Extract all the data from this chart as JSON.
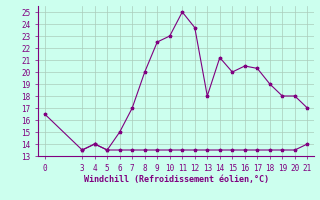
{
  "x": [
    0,
    3,
    4,
    5,
    6,
    7,
    8,
    9,
    10,
    11,
    12,
    13,
    14,
    15,
    16,
    17,
    18,
    19,
    20,
    21
  ],
  "y": [
    16.5,
    13.5,
    14.0,
    13.5,
    15.0,
    17.0,
    20.0,
    22.5,
    23.0,
    25.0,
    23.7,
    18.0,
    21.2,
    20.0,
    20.5,
    20.3,
    19.0,
    18.0,
    18.0,
    17.0
  ],
  "y2_x": [
    3,
    4,
    5,
    6,
    7,
    8,
    9,
    10,
    11,
    12,
    13,
    14,
    15,
    16,
    17,
    18,
    19,
    20,
    21
  ],
  "y2_y": [
    13.5,
    14.0,
    13.5,
    13.5,
    13.5,
    13.5,
    13.5,
    13.5,
    13.5,
    13.5,
    13.5,
    13.5,
    13.5,
    13.5,
    13.5,
    13.5,
    13.5,
    13.5,
    14.0
  ],
  "line_color": "#800080",
  "bg_color": "#ccffee",
  "grid_color": "#aaccbb",
  "xlabel": "Windchill (Refroidissement éolien,°C)",
  "xlim": [
    -0.5,
    21.5
  ],
  "ylim": [
    13,
    25.5
  ],
  "yticks": [
    13,
    14,
    15,
    16,
    17,
    18,
    19,
    20,
    21,
    22,
    23,
    24,
    25
  ],
  "xticks": [
    0,
    3,
    4,
    5,
    6,
    7,
    8,
    9,
    10,
    11,
    12,
    13,
    14,
    15,
    16,
    17,
    18,
    19,
    20,
    21
  ],
  "tick_fontsize": 5.5,
  "xlabel_fontsize": 6.0
}
